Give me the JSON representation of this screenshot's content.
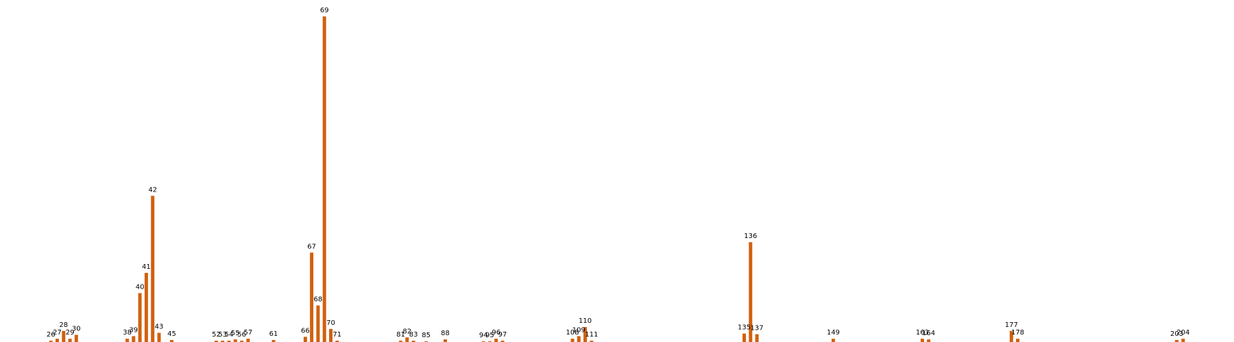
{
  "chart_data": {
    "type": "bar",
    "title": "",
    "xlabel": "",
    "ylabel": "",
    "bar_color": "#d2600f",
    "background": "#ffffff",
    "axes_visible": false,
    "grid": false,
    "categories": [
      26,
      27,
      28,
      29,
      30,
      38,
      39,
      40,
      41,
      42,
      43,
      45,
      52,
      53,
      54,
      55,
      56,
      57,
      61,
      66,
      67,
      68,
      69,
      70,
      71,
      81,
      82,
      83,
      85,
      88,
      94,
      95,
      96,
      97,
      108,
      109,
      110,
      111,
      135,
      136,
      137,
      149,
      163,
      164,
      177,
      178,
      203,
      204
    ],
    "values": [
      2,
      5,
      17,
      5,
      11,
      5,
      9,
      75,
      106,
      224,
      14,
      3,
      2,
      2,
      2,
      4,
      2,
      5,
      3,
      8,
      137,
      56,
      499,
      20,
      2,
      2,
      7,
      2,
      1,
      4,
      1,
      1,
      5,
      2,
      5,
      9,
      23,
      2,
      13,
      153,
      12,
      5,
      5,
      4,
      17,
      5,
      3,
      5
    ],
    "xlim": [
      18,
      212
    ],
    "ylim": [
      0,
      520
    ]
  }
}
